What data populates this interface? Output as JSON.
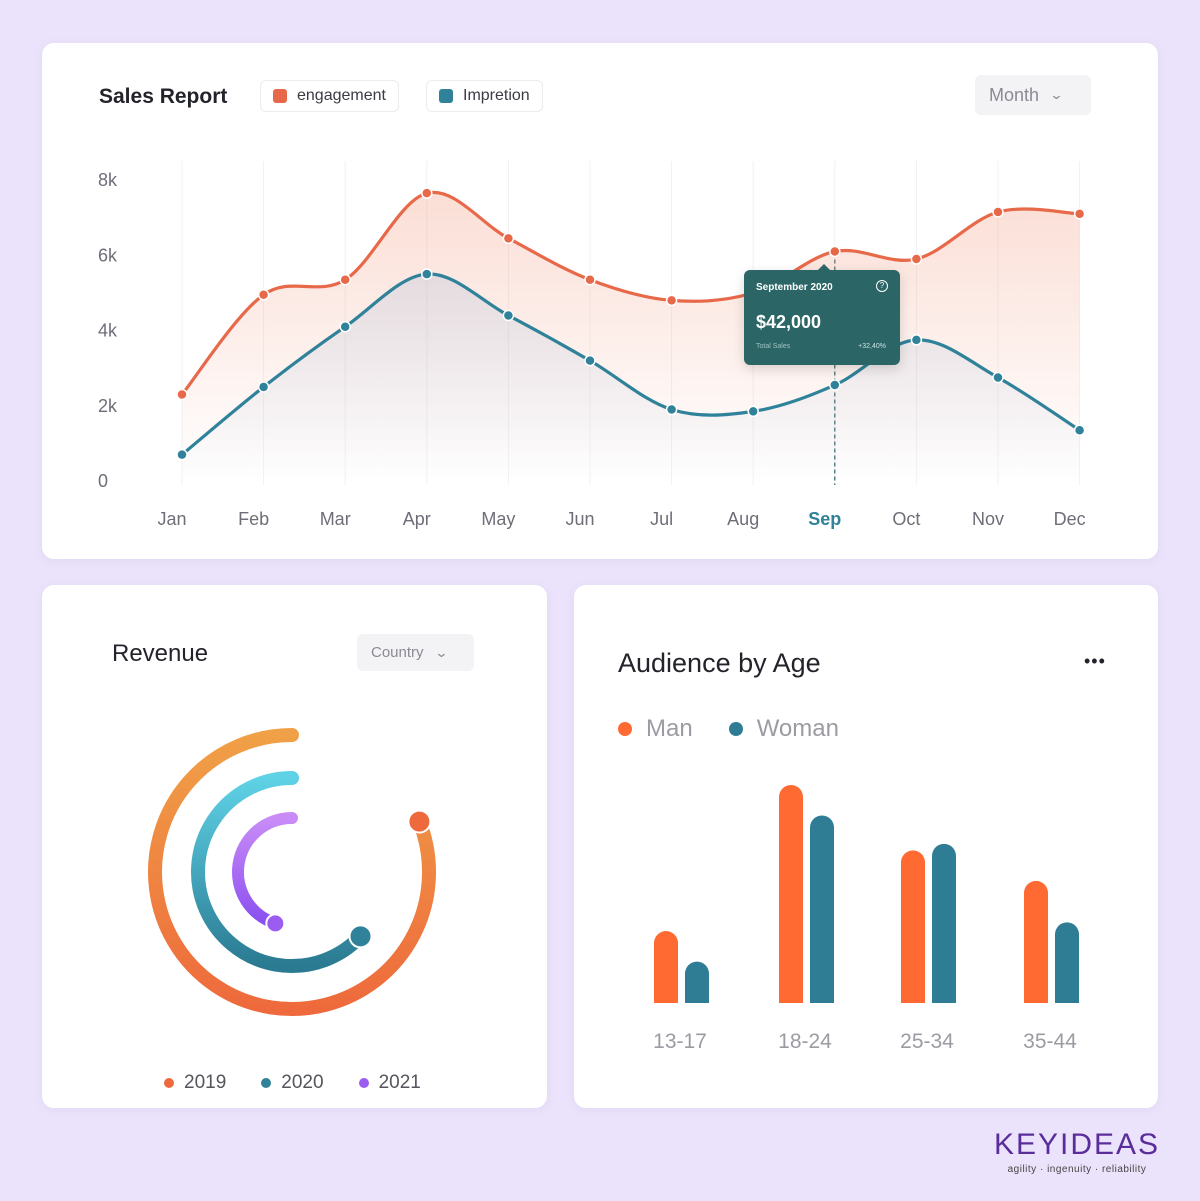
{
  "sales": {
    "title": "Sales Report",
    "legend": [
      {
        "label": "engagement",
        "color": "#e8694a"
      },
      {
        "label": "Impretion",
        "color": "#2f8299"
      }
    ],
    "dropdown": "Month",
    "tooltip": {
      "title": "September 2020",
      "value": "$42,000",
      "sub": "Total Sales",
      "change": "+32,40%"
    }
  },
  "revenue": {
    "title": "Revenue",
    "dropdown": "Country",
    "legend": [
      {
        "label": "2019",
        "color": "#ee6a3c"
      },
      {
        "label": "2020",
        "color": "#2f8299"
      },
      {
        "label": "2021",
        "color": "#9b5cf2"
      }
    ]
  },
  "audience": {
    "title": "Audience by Age",
    "menu": "•••",
    "legend": [
      {
        "label": "Man",
        "color": "#ff6a33"
      },
      {
        "label": "Woman",
        "color": "#2f7d95"
      }
    ]
  },
  "brand": {
    "name": "KEYIDEAS",
    "tagline": "agility · ingenuity · reliability"
  },
  "chart_data": [
    {
      "type": "line",
      "title": "Sales Report",
      "categories": [
        "Jan",
        "Feb",
        "Mar",
        "Apr",
        "May",
        "Jun",
        "Jul",
        "Aug",
        "Sep",
        "Oct",
        "Nov",
        "Dec"
      ],
      "highlight_category": "Sep",
      "y_ticks": [
        "8k",
        "6k",
        "4k",
        "2k",
        "0"
      ],
      "ylim": [
        0,
        8000
      ],
      "series": [
        {
          "name": "engagement",
          "color": "#e8694a",
          "values": [
            2300,
            4950,
            5350,
            7650,
            6450,
            5350,
            4800,
            5000,
            6100,
            5900,
            7150,
            7100
          ]
        },
        {
          "name": "Impretion",
          "color": "#2f8299",
          "values": [
            700,
            2500,
            4100,
            5500,
            4400,
            3200,
            1900,
            1850,
            2550,
            3750,
            2750,
            1350
          ]
        }
      ],
      "grid": "vertical",
      "legend_position": "top-left"
    },
    {
      "type": "radial",
      "title": "Revenue",
      "series": [
        {
          "name": "2019",
          "color": "#ee6a3c",
          "fraction": 0.81
        },
        {
          "name": "2020",
          "color": "#2f8299",
          "fraction": 0.63
        },
        {
          "name": "2021",
          "color": "#9b5cf2",
          "fraction": 0.45
        }
      ]
    },
    {
      "type": "bar",
      "title": "Audience by Age",
      "categories": [
        "13-17",
        "18-24",
        "25-34",
        "35-44"
      ],
      "series": [
        {
          "name": "Man",
          "color": "#ff6a33",
          "values": [
            33,
            100,
            70,
            56
          ]
        },
        {
          "name": "Woman",
          "color": "#2f7d95",
          "values": [
            19,
            86,
            73,
            37
          ]
        }
      ]
    }
  ]
}
